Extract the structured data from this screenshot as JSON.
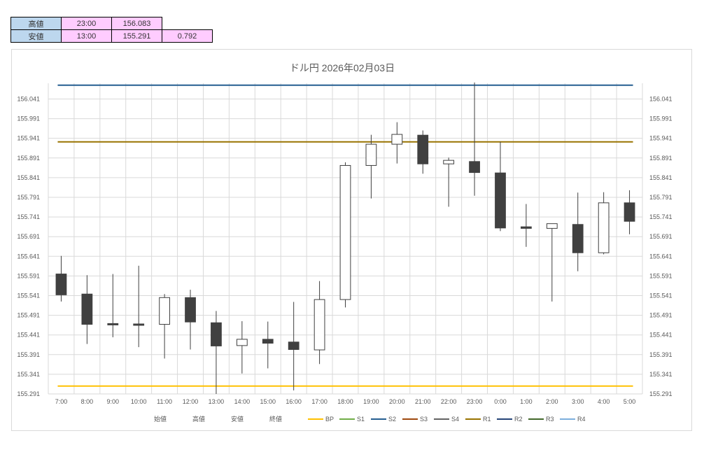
{
  "summary": {
    "high_label": "高値",
    "high_time": "23:00",
    "high_value": "156.083",
    "low_label": "安値",
    "low_time": "13:00",
    "low_value": "155.291",
    "range": "0.792"
  },
  "colors": {
    "up_fill": "#ffffff",
    "down_fill": "#404040",
    "candle_edge": "#404040",
    "grid": "#d9d9d9",
    "BP": "#ffc000",
    "S1": "#70ad47",
    "S2": "#255e91",
    "S3": "#9e480e",
    "S4": "#636363",
    "R1": "#997300",
    "R2": "#264478",
    "R3": "#43682b",
    "R4": "#7cafdd"
  },
  "chart_data": {
    "type": "candlestick",
    "title": "ドル円  2026年02月03日",
    "categories": [
      "7:00",
      "8:00",
      "9:00",
      "10:00",
      "11:00",
      "12:00",
      "13:00",
      "14:00",
      "15:00",
      "16:00",
      "17:00",
      "18:00",
      "19:00",
      "20:00",
      "21:00",
      "22:00",
      "23:00",
      "0:00",
      "1:00",
      "2:00",
      "3:00",
      "4:00",
      "5:00"
    ],
    "ylim": [
      155.291,
      156.081
    ],
    "yticks": [
      "156.041",
      "155.991",
      "155.941",
      "155.891",
      "155.841",
      "155.791",
      "155.741",
      "155.691",
      "155.641",
      "155.591",
      "155.541",
      "155.491",
      "155.441",
      "155.391",
      "155.341",
      "155.291"
    ],
    "legend": [
      "始値",
      "高値",
      "安値",
      "終値",
      "BP",
      "S1",
      "S2",
      "S3",
      "S4",
      "R1",
      "R2",
      "R3",
      "R4"
    ],
    "ohlc": [
      {
        "o": 155.596,
        "h": 155.642,
        "l": 155.526,
        "c": 155.543
      },
      {
        "o": 155.545,
        "h": 155.593,
        "l": 155.418,
        "c": 155.468
      },
      {
        "o": 155.47,
        "h": 155.596,
        "l": 155.435,
        "c": 155.467
      },
      {
        "o": 155.469,
        "h": 155.617,
        "l": 155.41,
        "c": 155.467
      },
      {
        "o": 155.468,
        "h": 155.545,
        "l": 155.381,
        "c": 155.536
      },
      {
        "o": 155.536,
        "h": 155.556,
        "l": 155.404,
        "c": 155.474
      },
      {
        "o": 155.472,
        "h": 155.502,
        "l": 155.291,
        "c": 155.413
      },
      {
        "o": 155.414,
        "h": 155.476,
        "l": 155.343,
        "c": 155.43
      },
      {
        "o": 155.43,
        "h": 155.475,
        "l": 155.356,
        "c": 155.42
      },
      {
        "o": 155.423,
        "h": 155.525,
        "l": 155.3,
        "c": 155.404
      },
      {
        "o": 155.403,
        "h": 155.578,
        "l": 155.367,
        "c": 155.531
      },
      {
        "o": 155.531,
        "h": 155.88,
        "l": 155.511,
        "c": 155.872
      },
      {
        "o": 155.872,
        "h": 155.95,
        "l": 155.788,
        "c": 155.926
      },
      {
        "o": 155.926,
        "h": 155.982,
        "l": 155.877,
        "c": 155.951
      },
      {
        "o": 155.949,
        "h": 155.961,
        "l": 155.851,
        "c": 155.876
      },
      {
        "o": 155.876,
        "h": 155.892,
        "l": 155.767,
        "c": 155.885
      },
      {
        "o": 155.882,
        "h": 156.083,
        "l": 155.795,
        "c": 155.854
      },
      {
        "o": 155.853,
        "h": 155.932,
        "l": 155.705,
        "c": 155.713
      },
      {
        "o": 155.716,
        "h": 155.774,
        "l": 155.665,
        "c": 155.712
      },
      {
        "o": 155.712,
        "h": 155.724,
        "l": 155.526,
        "c": 155.724
      },
      {
        "o": 155.722,
        "h": 155.803,
        "l": 155.603,
        "c": 155.65
      },
      {
        "o": 155.65,
        "h": 155.804,
        "l": 155.646,
        "c": 155.777
      },
      {
        "o": 155.777,
        "h": 155.809,
        "l": 155.697,
        "c": 155.73
      }
    ],
    "pivot_lines": [
      {
        "name": "S2",
        "value": 156.076
      },
      {
        "name": "R1",
        "value": 155.932
      },
      {
        "name": "BP",
        "value": 155.311
      }
    ]
  }
}
